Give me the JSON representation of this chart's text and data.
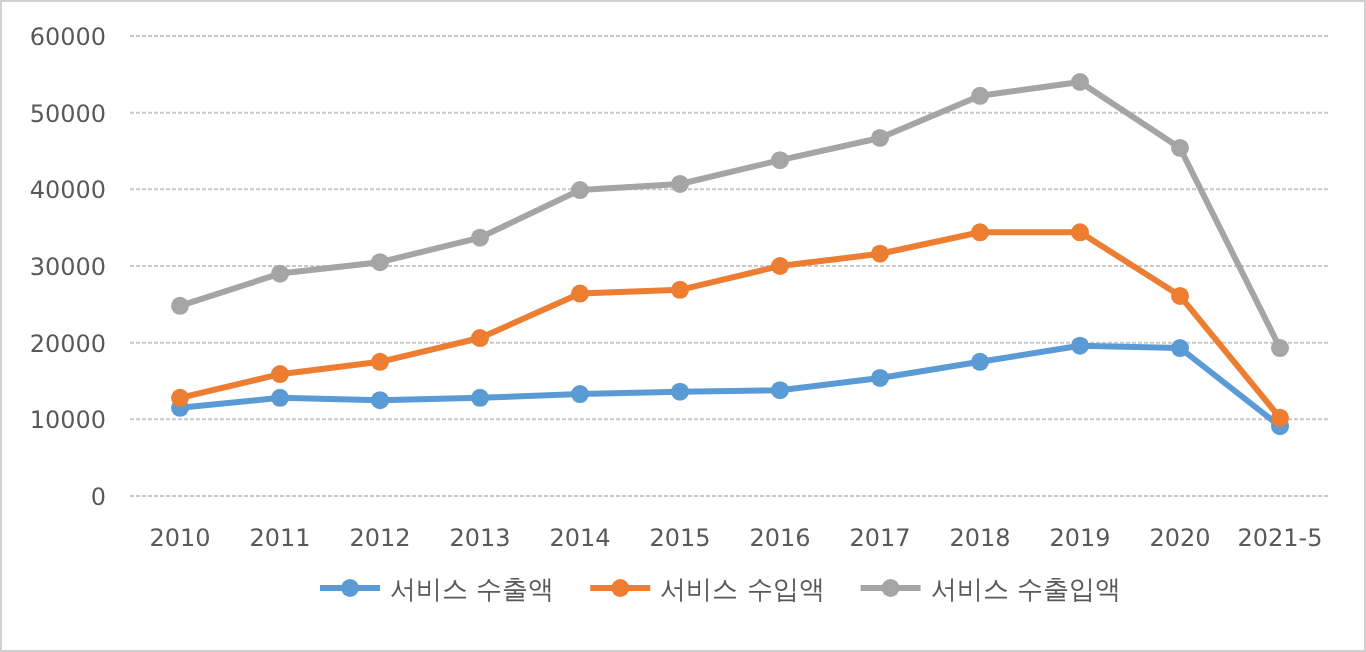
{
  "chart_data": {
    "type": "line",
    "categories": [
      "2010",
      "2011",
      "2012",
      "2013",
      "2014",
      "2015",
      "2016",
      "2017",
      "2018",
      "2019",
      "2020",
      "2021-5"
    ],
    "series": [
      {
        "name": "서비스 수출액",
        "color": "#5b9bd5",
        "values": [
          11500,
          12800,
          12500,
          12800,
          13300,
          13600,
          13800,
          15400,
          17500,
          19600,
          19300,
          9100
        ]
      },
      {
        "name": "서비스 수입액",
        "color": "#ed7d31",
        "values": [
          12800,
          15900,
          17500,
          20600,
          26400,
          26900,
          30000,
          31600,
          34400,
          34400,
          26100,
          10200
        ]
      },
      {
        "name": "서비스 수출입액",
        "color": "#a5a5a5",
        "values": [
          24800,
          29000,
          30500,
          33700,
          39900,
          40700,
          43800,
          46700,
          52200,
          54000,
          45400,
          19300
        ]
      }
    ],
    "ylim": [
      0,
      60000
    ],
    "yticks": [
      0,
      10000,
      20000,
      30000,
      40000,
      50000,
      60000
    ],
    "grid": "y",
    "legend": "bottom",
    "marker": "circle"
  }
}
